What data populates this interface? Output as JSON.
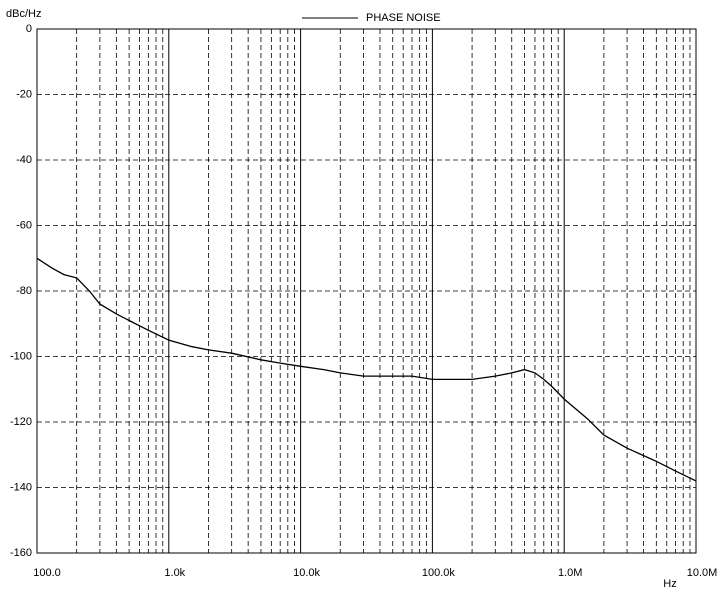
{
  "chart_data": {
    "type": "line",
    "legend": "top-center",
    "y_label": "dBc/Hz",
    "x_label": "Hz",
    "xscale": "log",
    "grid": true,
    "xlim": [
      100,
      10000000
    ],
    "xticks": [
      {
        "value": 100,
        "label": "100.0"
      },
      {
        "value": 1000,
        "label": "1.0k"
      },
      {
        "value": 10000,
        "label": "10.0k"
      },
      {
        "value": 100000,
        "label": "100.0k"
      },
      {
        "value": 1000000,
        "label": "1.0M"
      },
      {
        "value": 10000000,
        "label": "10.0M"
      }
    ],
    "xminorticks": [
      200,
      300,
      400,
      500,
      600,
      700,
      800,
      900,
      2000,
      3000,
      4000,
      5000,
      6000,
      7000,
      8000,
      9000,
      20000,
      30000,
      40000,
      50000,
      60000,
      70000,
      80000,
      90000,
      200000,
      300000,
      400000,
      500000,
      600000,
      700000,
      800000,
      900000,
      2000000,
      3000000,
      4000000,
      5000000,
      6000000,
      7000000,
      8000000,
      9000000
    ],
    "ylim": [
      -160,
      0
    ],
    "yticks": [
      0,
      -20,
      -40,
      -60,
      -80,
      -100,
      -120,
      -140,
      -160
    ],
    "x": [
      100,
      130,
      160,
      200,
      250,
      300,
      400,
      500,
      700,
      1000,
      1500,
      2000,
      3000,
      5000,
      7000,
      10000,
      15000,
      20000,
      30000,
      50000,
      70000,
      100000,
      150000,
      200000,
      300000,
      400000,
      500000,
      600000,
      700000,
      800000,
      1000000,
      1500000,
      2000000,
      3000000,
      5000000,
      7000000,
      10000000
    ],
    "series": [
      {
        "name": "PHASE NOISE",
        "color": "#000000",
        "values": [
          -70,
          -73,
          -75,
          -76,
          -80,
          -84,
          -87,
          -89,
          -92,
          -95,
          -97,
          -98,
          -99,
          -101,
          -102,
          -103,
          -104,
          -105,
          -106,
          -106,
          -106,
          -107,
          -107,
          -107,
          -106,
          -105,
          -104,
          -105,
          -107,
          -109,
          -113,
          -119,
          -124,
          -128,
          -132,
          -135,
          -138
        ]
      }
    ]
  }
}
